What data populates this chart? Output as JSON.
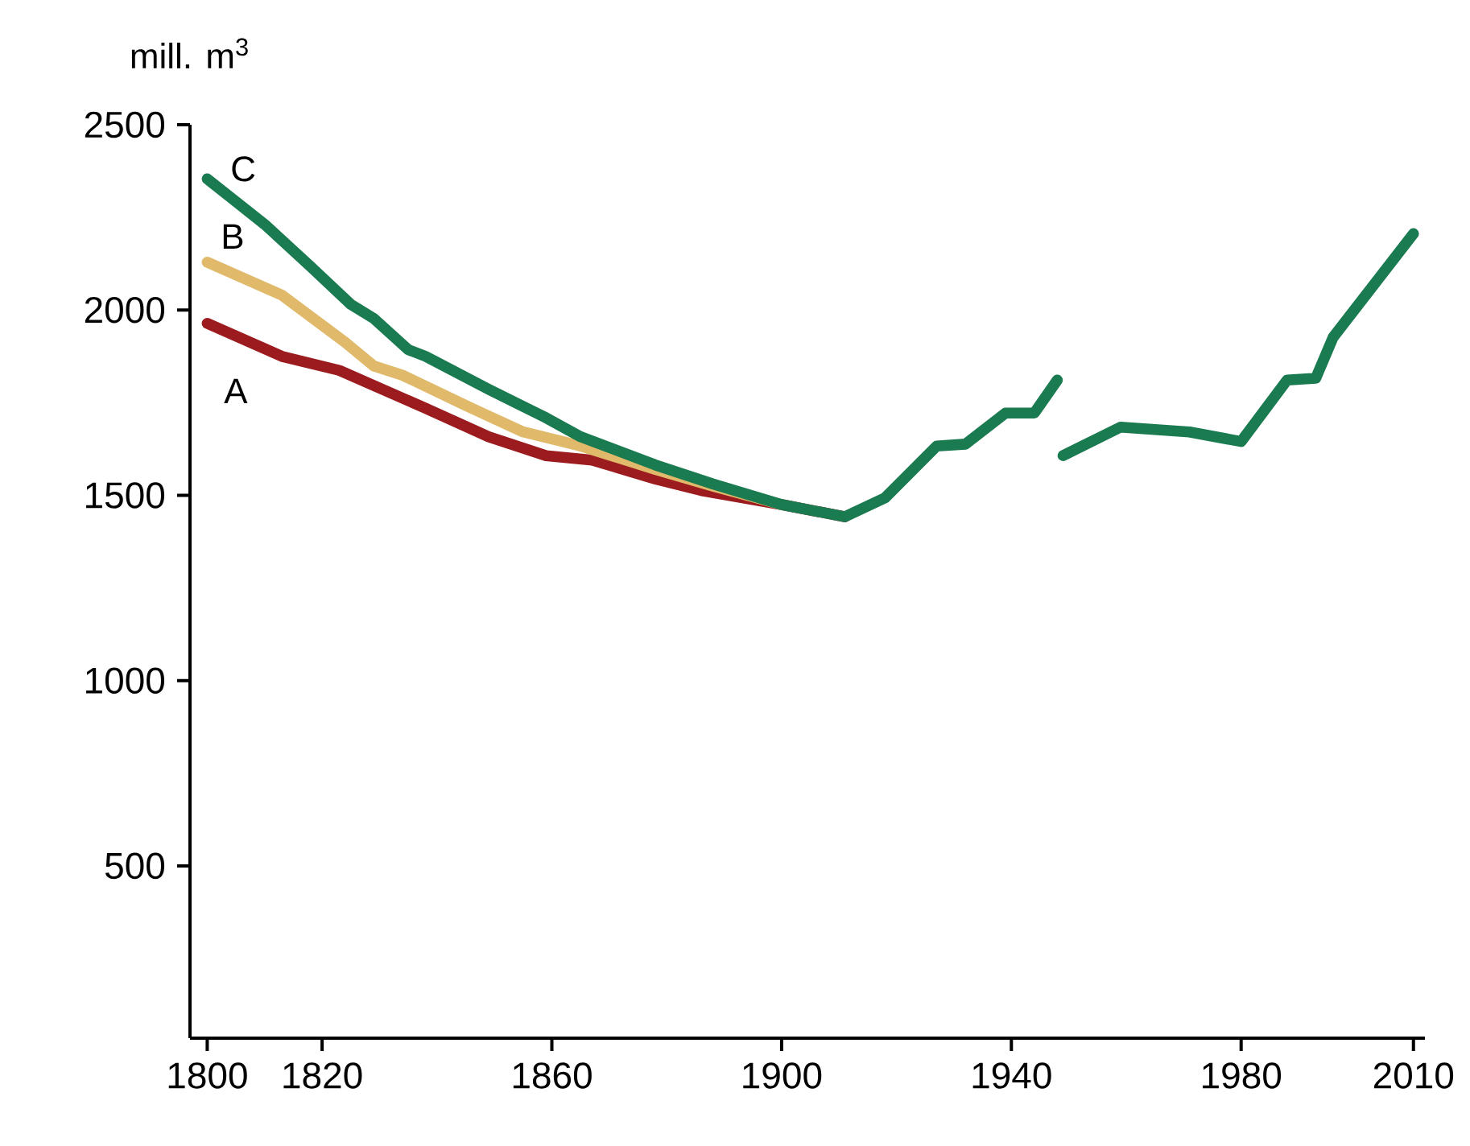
{
  "chart_data": {
    "type": "line",
    "ylabel": "mill. m$^{3}$",
    "xlim": [
      1797,
      2012
    ],
    "ylim": [
      35,
      2500
    ],
    "xticks": [
      1800,
      1820,
      1860,
      1900,
      1940,
      1980,
      2010
    ],
    "yticks": [
      500,
      1000,
      1500,
      2000,
      2500
    ],
    "grid": false,
    "legend": false,
    "marker": "none",
    "line_style": "solid",
    "series": [
      {
        "name": "A",
        "color": "#9b1b1e",
        "x": [
          1800,
          1813,
          1823,
          1838,
          1849,
          1859,
          1867,
          1878,
          1886,
          1900,
          1911
        ],
        "values": [
          1964,
          1875,
          1837,
          1735,
          1658,
          1607,
          1595,
          1544,
          1513,
          1475,
          1442
        ]
      },
      {
        "name": "B",
        "color": "#e0b96a",
        "x": [
          1800,
          1813,
          1824,
          1829,
          1834,
          1846,
          1855,
          1865,
          1878,
          1888,
          1900
        ],
        "values": [
          2129,
          2040,
          1913,
          1849,
          1824,
          1735,
          1671,
          1633,
          1570,
          1525,
          1475
        ]
      },
      {
        "name": "C",
        "color": "#1a7a50",
        "x": [
          1800,
          1810,
          1818,
          1825,
          1829,
          1835,
          1838,
          1849,
          1859,
          1865,
          1878,
          1888,
          1900,
          1911,
          1918,
          1927,
          1932,
          1939,
          1944,
          1948,
          1948.5,
          1949,
          1959,
          1971,
          1980,
          1988,
          1993,
          1996,
          2010
        ],
        "values": [
          2354,
          2231,
          2117,
          2015,
          1977,
          1893,
          1875,
          1786,
          1709,
          1658,
          1582,
          1531,
          1475,
          1442,
          1493,
          1633,
          1638,
          1722,
          1722,
          1811,
          null,
          1607,
          1684,
          1671,
          1645,
          1811,
          1816,
          1926,
          2206
        ]
      }
    ]
  }
}
